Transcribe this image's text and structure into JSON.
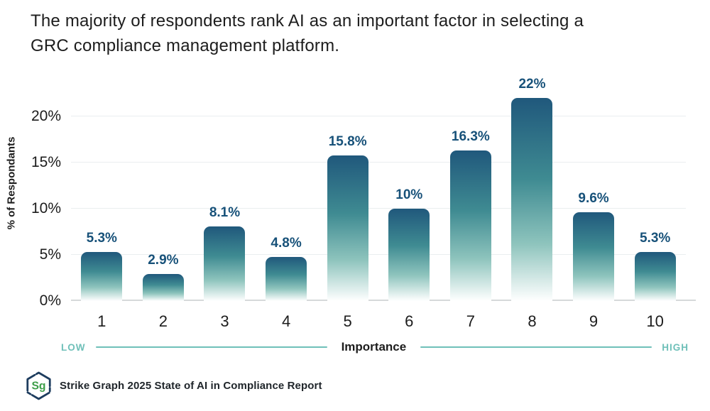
{
  "title": {
    "line1": "The majority of respondents rank AI as an important factor in selecting a",
    "line2": "GRC compliance management platform."
  },
  "chart_data": {
    "type": "bar",
    "categories": [
      "1",
      "2",
      "3",
      "4",
      "5",
      "6",
      "7",
      "8",
      "9",
      "10"
    ],
    "values": [
      5.3,
      2.9,
      8.1,
      4.8,
      15.8,
      10,
      16.3,
      22,
      9.6,
      5.3
    ],
    "value_labels": [
      "5.3%",
      "2.9%",
      "8.1%",
      "4.8%",
      "15.8%",
      "10%",
      "16.3%",
      "22%",
      "9.6%",
      "5.3%"
    ],
    "title": "The majority of respondents rank AI as an important factor in selecting a GRC compliance management platform.",
    "xlabel": "Importance",
    "ylabel": "% of Respondants",
    "x_low_label": "LOW",
    "x_high_label": "HIGH",
    "ytick_labels": [
      "0%",
      "5%",
      "10%",
      "15%",
      "20%"
    ],
    "ytick_values": [
      0,
      5,
      10,
      15,
      20
    ],
    "ylim": [
      0,
      22.6
    ],
    "grid": true,
    "legend": false,
    "bar_gradient_top": "#20587c",
    "bar_gradient_mid": "#3f8b92",
    "bar_gradient_bottom": "#ffffff",
    "value_label_color": "#175179",
    "axis_accent_color": "#6fc0b9"
  },
  "footer": {
    "logo_text": "Sg",
    "logo_text_color": "#3d9e49",
    "logo_outline_color": "#1d3c5e",
    "text": "Strike Graph 2025 State of AI in Compliance Report"
  }
}
